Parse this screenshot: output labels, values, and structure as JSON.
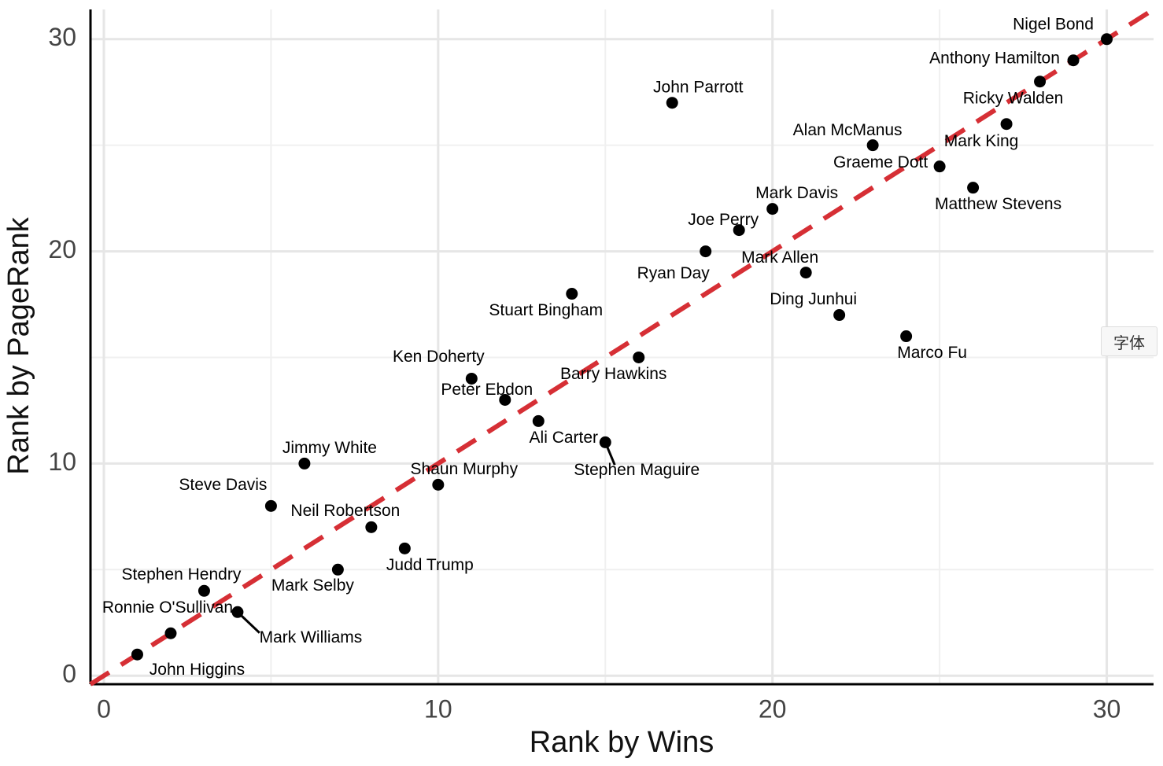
{
  "chart_data": {
    "type": "scatter",
    "x_label": "Rank by Wins",
    "y_label": "Rank by PageRank",
    "labels": [
      "John Higgins",
      "Ronnie O'Sullivan",
      "Stephen Hendry",
      "Mark Williams",
      "Steve Davis",
      "Jimmy White",
      "Mark Selby",
      "Neil Robertson",
      "Judd Trump",
      "Shaun Murphy",
      "Ken Doherty",
      "Peter Ebdon",
      "Ali Carter",
      "Stuart Bingham",
      "Stephen Maguire",
      "Barry Hawkins",
      "John Parrott",
      "Ryan Day",
      "Joe Perry",
      "Mark Davis",
      "Mark Allen",
      "Ding Junhui",
      "Alan McManus",
      "Marco Fu",
      "Graeme Dott",
      "Matthew Stevens",
      "Mark King",
      "Ricky Walden",
      "Anthony Hamilton",
      "Nigel Bond"
    ],
    "x": [
      1,
      2,
      3,
      4,
      5,
      6,
      7,
      8,
      9,
      10,
      11,
      12,
      13,
      14,
      15,
      16,
      17,
      18,
      19,
      20,
      21,
      22,
      23,
      24,
      25,
      26,
      27,
      28,
      29,
      30
    ],
    "y": [
      1,
      2,
      4,
      3,
      8,
      10,
      5,
      7,
      6,
      9,
      14,
      13,
      12,
      18,
      11,
      15,
      27,
      20,
      21,
      22,
      19,
      17,
      25,
      16,
      24,
      23,
      26,
      28,
      29,
      30
    ],
    "color": "#000000",
    "reference_line": {
      "slope": 1,
      "intercept": 0,
      "color": "#d62f35"
    },
    "xlim": [
      -0.4,
      31.4
    ],
    "ylim": [
      -0.4,
      31.4
    ],
    "xticks": [
      0,
      10,
      20,
      30
    ],
    "yticks": [
      0,
      10,
      20,
      30
    ],
    "xminor_ticks": [
      5,
      15,
      25
    ],
    "yminor_ticks": [
      5,
      15,
      25
    ],
    "grid": true
  },
  "overlay_button": "字体"
}
